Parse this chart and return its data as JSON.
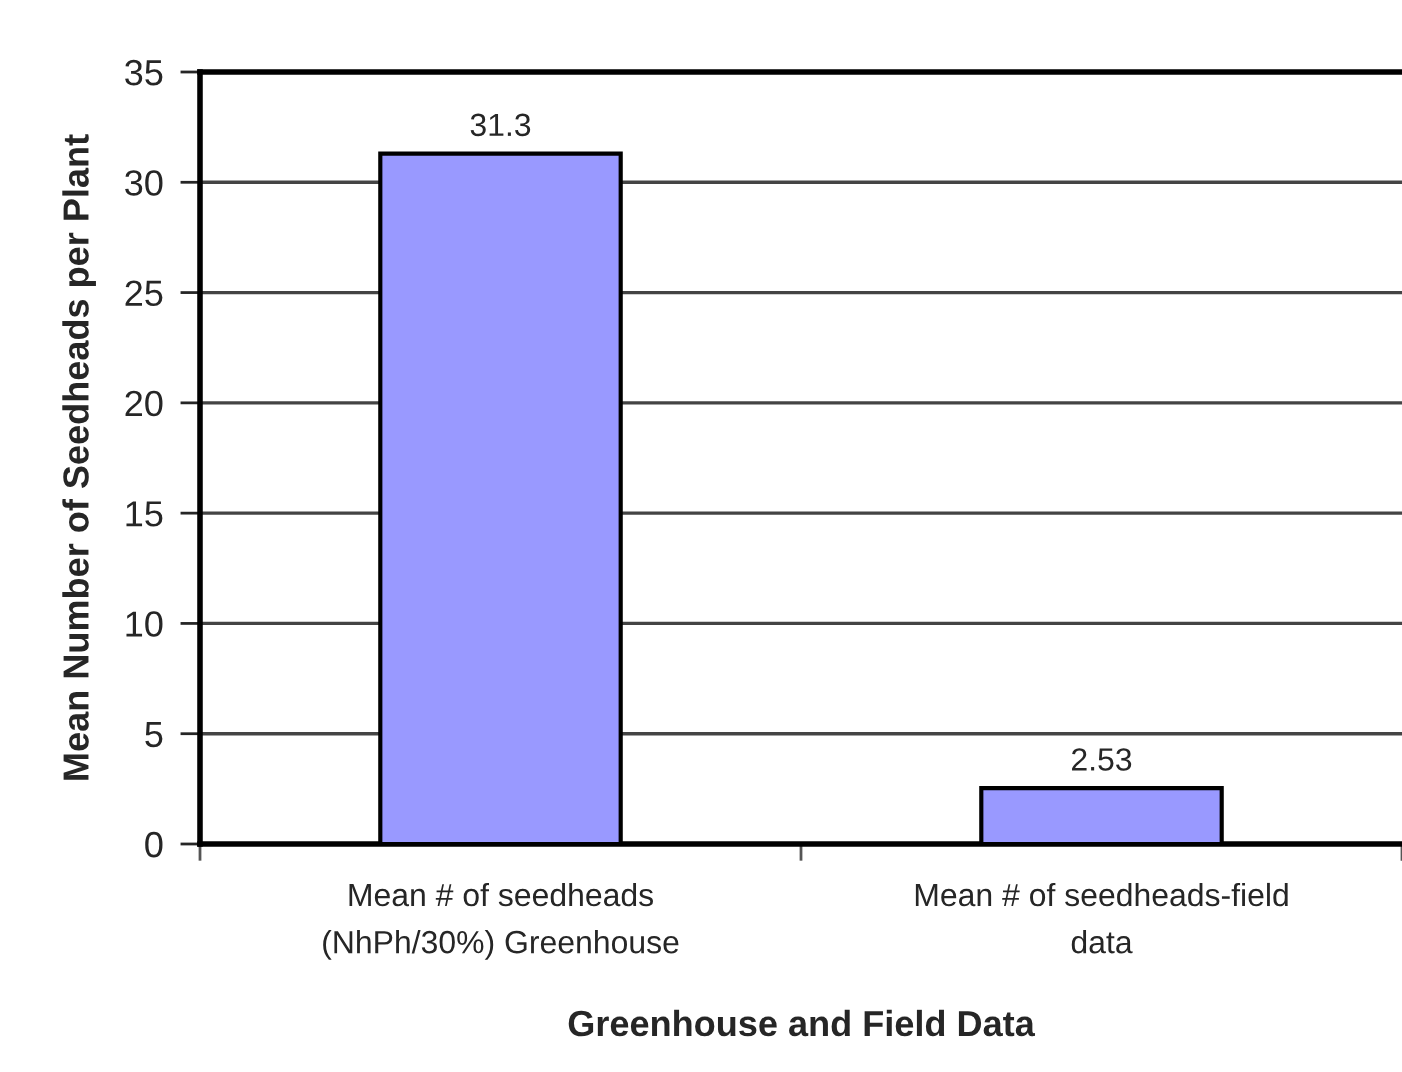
{
  "chart_data": {
    "type": "bar",
    "categories": [
      "Mean # of seedheads\n(NhPh/30%) Greenhouse",
      "Mean # of seedheads-field\ndata"
    ],
    "values": [
      31.3,
      2.53
    ],
    "color": "#9999ff",
    "xlabel": "Greenhouse and Field Data",
    "ylabel": "Mean Number of Seedheads per Plant",
    "ylim": [
      0,
      35
    ],
    "yticks": [
      0,
      5,
      10,
      15,
      20,
      25,
      30,
      35
    ],
    "grid": "y",
    "data_labels": true
  }
}
